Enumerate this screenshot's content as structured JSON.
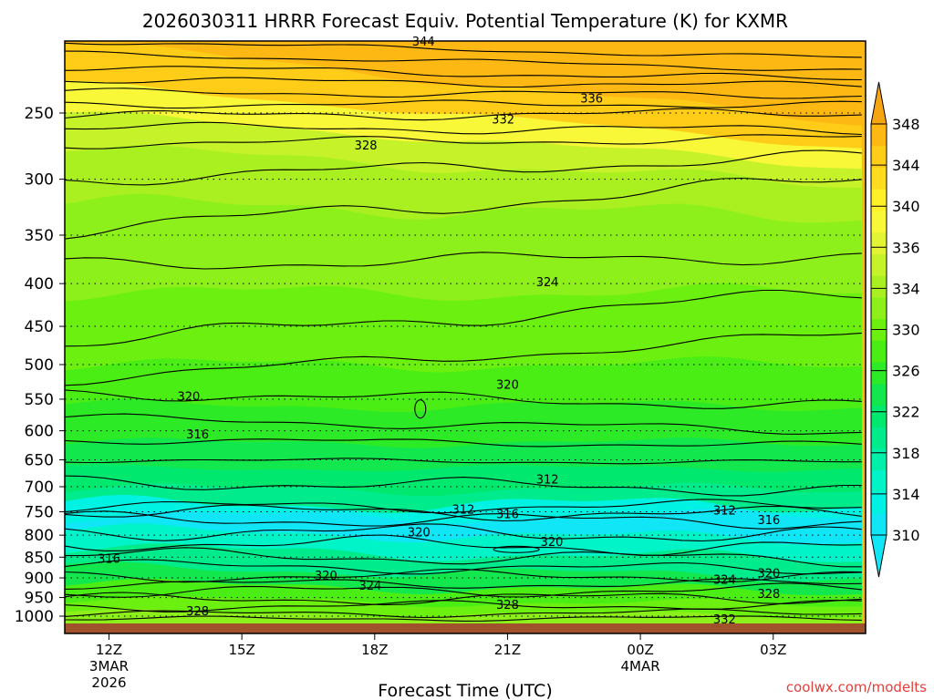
{
  "chart_data": {
    "type": "heatmap",
    "title": "2026030311 HRRR Forecast Equiv. Potential Temperature (K) for KXMR",
    "xlabel": "Forecast Time (UTC)",
    "ylabel": "",
    "credit": "coolwx.com/modelts",
    "x_ticks": [
      {
        "hour": 0,
        "label": "12Z",
        "sub1": "3MAR",
        "sub2": "2026"
      },
      {
        "hour": 3,
        "label": "15Z",
        "sub1": "",
        "sub2": ""
      },
      {
        "hour": 6,
        "label": "18Z",
        "sub1": "",
        "sub2": ""
      },
      {
        "hour": 9,
        "label": "21Z",
        "sub1": "",
        "sub2": ""
      },
      {
        "hour": 12,
        "label": "00Z",
        "sub1": "4MAR",
        "sub2": ""
      },
      {
        "hour": 15,
        "label": "03Z",
        "sub1": "",
        "sub2": ""
      }
    ],
    "x_range_hours": [
      -1,
      17
    ],
    "y_ticks": [
      250,
      300,
      350,
      400,
      450,
      500,
      550,
      600,
      650,
      700,
      750,
      800,
      850,
      900,
      950,
      1000
    ],
    "y_range_hpa": [
      200,
      1020
    ],
    "y_scale": "log-pressure",
    "colorbar": {
      "levels": [
        310,
        312,
        314,
        316,
        318,
        320,
        322,
        324,
        326,
        328,
        330,
        332,
        334,
        336,
        338,
        340,
        342,
        344,
        346,
        348
      ],
      "labels": [
        "310",
        "314",
        "318",
        "322",
        "326",
        "330",
        "334",
        "336",
        "340",
        "344",
        "348"
      ],
      "colors": [
        "#10e6f6",
        "#00f2e2",
        "#00f4c8",
        "#00f0aa",
        "#00ec8c",
        "#00e86e",
        "#12e84e",
        "#2cea26",
        "#4aee14",
        "#6cf010",
        "#8ef01a",
        "#aaf020",
        "#c6f22a",
        "#e2f434",
        "#f8f838",
        "#fff028",
        "#ffdc1e",
        "#ffcc18",
        "#fdb814",
        "#f5a412"
      ],
      "extend": "both"
    },
    "ground_color": "#a0522d",
    "contour_interval_K": 2,
    "contour_labels": [
      {
        "value": "344",
        "hour": 7.1,
        "p": 205
      },
      {
        "value": "336",
        "hour": 10.9,
        "p": 240
      },
      {
        "value": "332",
        "hour": 8.9,
        "p": 254
      },
      {
        "value": "328",
        "hour": 5.8,
        "p": 273
      },
      {
        "value": "324",
        "hour": 9.9,
        "p": 398
      },
      {
        "value": "320",
        "hour": 1.8,
        "p": 545
      },
      {
        "value": "320",
        "hour": 9.0,
        "p": 528
      },
      {
        "value": "316",
        "hour": 2.0,
        "p": 605
      },
      {
        "value": "312",
        "hour": 9.9,
        "p": 685
      },
      {
        "value": "312",
        "hour": 8.0,
        "p": 744
      },
      {
        "value": "316",
        "hour": 9.0,
        "p": 754
      },
      {
        "value": "312",
        "hour": 13.9,
        "p": 746
      },
      {
        "value": "316",
        "hour": 14.9,
        "p": 766
      },
      {
        "value": "320",
        "hour": 7.0,
        "p": 793
      },
      {
        "value": "320",
        "hour": 10.0,
        "p": 814
      },
      {
        "value": "316",
        "hour": 0.0,
        "p": 853
      },
      {
        "value": "320",
        "hour": 4.9,
        "p": 893
      },
      {
        "value": "324",
        "hour": 5.9,
        "p": 918
      },
      {
        "value": "320",
        "hour": 14.9,
        "p": 888
      },
      {
        "value": "324",
        "hour": 13.9,
        "p": 903
      },
      {
        "value": "328",
        "hour": 14.9,
        "p": 939
      },
      {
        "value": "328",
        "hour": 9.0,
        "p": 968
      },
      {
        "value": "328",
        "hour": 2.0,
        "p": 985
      },
      {
        "value": "332",
        "hour": 13.9,
        "p": 1008
      }
    ]
  }
}
